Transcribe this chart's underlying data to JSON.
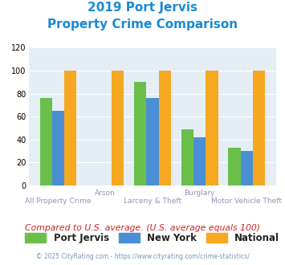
{
  "title_line1": "2019 Port Jervis",
  "title_line2": "Property Crime Comparison",
  "categories": [
    "All Property Crime",
    "Arson",
    "Larceny & Theft",
    "Burglary",
    "Motor Vehicle Theft"
  ],
  "port_jervis": [
    76,
    0,
    90,
    49,
    33
  ],
  "new_york": [
    65,
    0,
    76,
    42,
    30
  ],
  "national": [
    100,
    100,
    100,
    100,
    100
  ],
  "color_port_jervis": "#6abf4b",
  "color_new_york": "#4a8fd4",
  "color_national": "#f5a820",
  "color_title": "#1a8ad4",
  "color_bg": "#e4eef4",
  "color_category_text": "#9b8fb6",
  "ylim": [
    0,
    120
  ],
  "yticks": [
    0,
    20,
    40,
    60,
    80,
    100,
    120
  ],
  "subtitle_text": "Compared to U.S. average. (U.S. average equals 100)",
  "footer_text": "© 2025 CityRating.com - https://www.cityrating.com/crime-statistics/",
  "legend_labels": [
    "Port Jervis",
    "New York",
    "National"
  ]
}
